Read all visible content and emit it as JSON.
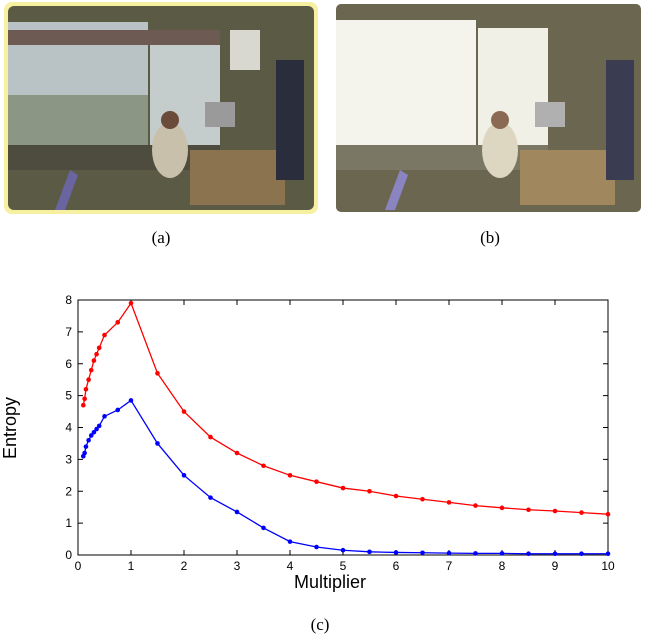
{
  "panels": [
    {
      "caption": "(a)"
    },
    {
      "caption": "(b)"
    }
  ],
  "chart_data": {
    "type": "line",
    "caption": "(c)",
    "x_label": "Multiplier",
    "y_label": "Entropy",
    "x": [
      0.1,
      0.125,
      0.15,
      0.2,
      0.25,
      0.3,
      0.35,
      0.4,
      0.5,
      0.75,
      1,
      1.5,
      2,
      2.5,
      3,
      3.5,
      4,
      4.5,
      5,
      5.5,
      6,
      6.5,
      7,
      7.5,
      8,
      8.5,
      9,
      9.5,
      10
    ],
    "series": [
      {
        "color": "#ff0000",
        "values": [
          4.7,
          4.9,
          5.2,
          5.5,
          5.8,
          6.1,
          6.3,
          6.5,
          6.9,
          7.3,
          7.9,
          5.7,
          4.5,
          3.7,
          3.2,
          2.8,
          2.5,
          2.3,
          2.1,
          2.0,
          1.85,
          1.75,
          1.65,
          1.55,
          1.48,
          1.42,
          1.38,
          1.33,
          1.28
        ]
      },
      {
        "color": "#0000ff",
        "values": [
          3.1,
          3.2,
          3.4,
          3.6,
          3.75,
          3.85,
          3.95,
          4.05,
          4.35,
          4.55,
          4.85,
          3.5,
          2.5,
          1.8,
          1.35,
          0.85,
          0.42,
          0.25,
          0.15,
          0.1,
          0.08,
          0.07,
          0.06,
          0.05,
          0.05,
          0.04,
          0.04,
          0.04,
          0.04
        ]
      }
    ],
    "xlim": [
      0,
      10
    ],
    "xticks": [
      0,
      1,
      2,
      3,
      4,
      5,
      6,
      7,
      8,
      9,
      10
    ],
    "ylim": [
      0,
      8
    ],
    "yticks": [
      0,
      1,
      2,
      3,
      4,
      5,
      6,
      7,
      8
    ]
  }
}
